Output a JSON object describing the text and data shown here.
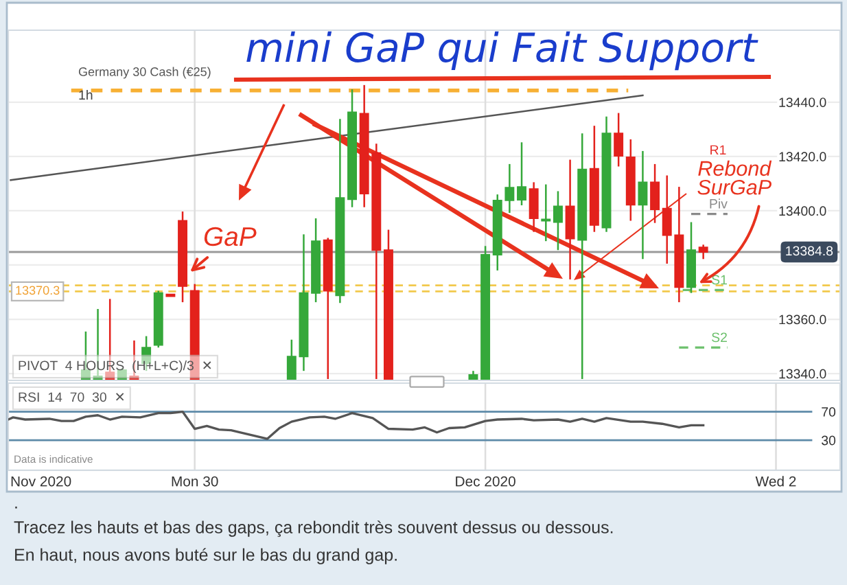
{
  "chart_data": [
    {
      "type": "candlestick",
      "title": "Germany 30 Cash (€25)",
      "subtitle": "1h",
      "x": [
        "2020-11-29T15:00",
        "2020-11-29T16:00",
        "2020-11-29T17:00",
        "2020-11-29T18:00",
        "2020-11-29T19:00",
        "2020-11-29T20:00",
        "2020-11-29T21:00",
        "2020-11-29T22:00",
        "2020-11-29T23:00",
        "2020-11-30T00:00",
        "2020-11-30T08:00",
        "2020-11-30T09:00",
        "2020-11-30T10:00",
        "2020-11-30T11:00",
        "2020-11-30T12:00",
        "2020-11-30T13:00",
        "2020-11-30T14:00",
        "2020-11-30T15:00",
        "2020-11-30T16:00",
        "2020-11-30T23:00",
        "2020-12-01T00:00",
        "2020-12-01T01:00",
        "2020-12-01T02:00",
        "2020-12-01T03:00",
        "2020-12-01T04:00",
        "2020-12-01T05:00",
        "2020-12-01T06:00",
        "2020-12-01T07:00",
        "2020-12-01T08:00",
        "2020-12-01T09:00",
        "2020-12-01T10:00",
        "2020-12-01T11:00",
        "2020-12-01T12:00",
        "2020-12-01T13:00",
        "2020-12-01T14:00",
        "2020-12-01T15:00",
        "2020-12-01T16:00",
        "2020-12-01T17:00",
        "2020-12-01T18:00"
      ],
      "ohlc": [
        [
          13338,
          13355.5,
          13338,
          13341.3
        ],
        [
          13338,
          13363.8,
          13338,
          13339
        ],
        [
          13340.5,
          13367.5,
          13338,
          13338
        ],
        [
          13338,
          13342,
          13338,
          13341.3
        ],
        [
          13339,
          13352.2,
          13338,
          13338
        ],
        [
          13343.8,
          13353.8,
          13341,
          13349.6
        ],
        [
          13350.5,
          13370.5,
          13349.6,
          13369.7
        ],
        [
          13369.2,
          13369.2,
          13368.5,
          13368.5
        ],
        [
          13396.3,
          13399.7,
          13366.3,
          13372.2
        ],
        [
          13370.5,
          13373,
          13338,
          13338
        ],
        [
          13338,
          13352.5,
          13338,
          13346.3
        ],
        [
          13346.3,
          13391.3,
          13341,
          13369.7
        ],
        [
          13369.7,
          13397.2,
          13366.3,
          13388.8
        ],
        [
          13389.2,
          13390,
          13338,
          13370.5
        ],
        [
          13368.8,
          13433.8,
          13366,
          13404.7
        ],
        [
          13404.2,
          13444.7,
          13401.3,
          13436.3
        ],
        [
          13435.8,
          13446.3,
          13401.3,
          13406.3
        ],
        [
          13421.3,
          13424.7,
          13338,
          13385.5
        ],
        [
          13385.5,
          13393,
          13338,
          13338
        ],
        [
          13338,
          13341,
          13338,
          13339.5
        ],
        [
          13338,
          13387,
          13338,
          13383.8
        ],
        [
          13383.8,
          13406,
          13378,
          13403.8
        ],
        [
          13403.8,
          13417.2,
          13399.2,
          13408.5
        ],
        [
          13404,
          13425.2,
          13402,
          13408.8
        ],
        [
          13408,
          13410.5,
          13392.2,
          13397.2
        ],
        [
          13396.3,
          13409.7,
          13388.8,
          13396.8
        ],
        [
          13395.8,
          13407.2,
          13385.5,
          13401.6
        ],
        [
          13401.6,
          13418.8,
          13374.7,
          13389.7
        ],
        [
          13389.2,
          13428.5,
          13338,
          13415.2
        ],
        [
          13415.5,
          13431.3,
          13392.2,
          13394.7
        ],
        [
          13393.8,
          13434.7,
          13392.2,
          13428.5
        ],
        [
          13428.5,
          13436,
          13416.3,
          13420.2
        ],
        [
          13419.7,
          13426.3,
          13396.3,
          13402.2
        ],
        [
          13402.2,
          13422,
          13382.2,
          13410.5
        ],
        [
          13410.5,
          13417.2,
          13395.5,
          13400.5
        ],
        [
          13400.8,
          13413,
          13380.5,
          13391
        ],
        [
          13391,
          13408.8,
          13366.3,
          13371.8
        ],
        [
          13371.8,
          13395.8,
          13369.7,
          13385.5
        ],
        [
          13386.5,
          13387.5,
          13382.2,
          13384.8
        ]
      ],
      "colors": [
        "#35a83a",
        "#35a83a",
        "#e3211c",
        "#35a83a",
        "#e3211c",
        "#35a83a",
        "#35a83a",
        "#e3211c",
        "#e3211c",
        "#e3211c",
        "#35a83a",
        "#35a83a",
        "#35a83a",
        "#e3211c",
        "#35a83a",
        "#35a83a",
        "#e3211c",
        "#e3211c",
        "#e3211c",
        "#35a83a",
        "#35a83a",
        "#35a83a",
        "#35a83a",
        "#35a83a",
        "#e3211c",
        "#35a83a",
        "#35a83a",
        "#e3211c",
        "#35a83a",
        "#e3211c",
        "#35a83a",
        "#e3211c",
        "#e3211c",
        "#35a83a",
        "#e3211c",
        "#e3211c",
        "#e3211c",
        "#35a83a",
        "#e3211c"
      ],
      "series": [
        {
          "type": "line",
          "x": [
            "2020-11-29T08:48",
            "2020-12-01T13:00"
          ],
          "values": [
            13411.3,
            13442.5
          ],
          "color": "#555555",
          "line_style": "solid"
        },
        {
          "type": "line",
          "x": [
            "2020-11-29T13:48",
            "2020-12-01T11:48"
          ],
          "values": [
            13444.3,
            13444.3
          ],
          "color": "#f7b034",
          "line_style": "dashed"
        },
        {
          "type": "line",
          "name": "Piv",
          "x": [
            "2020-12-01T17:00",
            "2020-12-01T20:00"
          ],
          "values": [
            13398.8,
            13398.8
          ],
          "color": "#8a8a8a",
          "line_style": "dashed"
        },
        {
          "type": "line",
          "name": "S1",
          "x": [
            "2020-12-01T16:18",
            "2020-12-01T20:00"
          ],
          "values": [
            13370.8,
            13370.8
          ],
          "color": "#6cc06c",
          "line_style": "dashed"
        },
        {
          "type": "line",
          "name": "S2",
          "x": [
            "2020-12-01T16:00",
            "2020-12-01T20:00"
          ],
          "values": [
            13349.6,
            13349.6
          ],
          "color": "#6cc06c",
          "line_style": "dashed"
        }
      ],
      "xlim": [
        "2020-11-29T08:36",
        "2020-12-02T05:18"
      ],
      "ylim": [
        13337.5,
        13466.5
      ],
      "yticks": [
        {
          "value": 13340,
          "label": "13340.0"
        },
        {
          "value": 13360,
          "label": "13360.0"
        },
        {
          "value": 13380,
          "label": null
        },
        {
          "value": 13400,
          "label": "13400.0"
        },
        {
          "value": 13420,
          "label": "13420.0"
        },
        {
          "value": 13440,
          "label": "13440.0"
        }
      ],
      "tick_labels": "y",
      "grid": "y",
      "ref_lines": [
        {
          "axis": "x",
          "value": "2020-11-30",
          "color": "#dddddd"
        },
        {
          "axis": "x",
          "value": "2020-12-01",
          "color": "#dddddd"
        },
        {
          "axis": "y",
          "value": 13384.8,
          "label": "13384.8",
          "color": "#9a9a9a",
          "line_style": "solid"
        },
        {
          "axis": "y",
          "value": 13370.3,
          "label": "13370.3",
          "color": "#f2c94c",
          "line_style": "dashed"
        },
        {
          "axis": "y",
          "value": 13372.5,
          "color": "#f2c94c",
          "line_style": "dashed"
        }
      ],
      "annotations": [
        "mini GaP qui Fait Support",
        "PIVOT  4 HOURS  (H+L+C)/3  ✕",
        {
          "text": "GaP",
          "x": "2020-11-29T23:30",
          "y": 13377
        },
        {
          "text": "Rebond\nSurGaP",
          "x": "2020-12-01T17:30",
          "y": 13373
        },
        "R1"
      ]
    },
    {
      "type": "line",
      "x": [
        "2020-11-29T08:36",
        "2020-11-29T09:00",
        "2020-11-29T10:00",
        "2020-11-29T12:00",
        "2020-11-29T13:00",
        "2020-11-29T14:00",
        "2020-11-29T15:00",
        "2020-11-29T16:00",
        "2020-11-29T17:00",
        "2020-11-29T18:00",
        "2020-11-29T19:30",
        "2020-11-29T21:00",
        "2020-11-29T22:00",
        "2020-11-29T23:00",
        "2020-11-30T00:00",
        "2020-11-30T01:00",
        "2020-11-30T02:00",
        "2020-11-30T03:00",
        "2020-11-30T04:30",
        "2020-11-30T06:00",
        "2020-11-30T07:00",
        "2020-11-30T08:00",
        "2020-11-30T09:30",
        "2020-11-30T10:42",
        "2020-11-30T11:36",
        "2020-11-30T13:00",
        "2020-11-30T14:42",
        "2020-11-30T16:00",
        "2020-11-30T18:00",
        "2020-11-30T19:00",
        "2020-11-30T20:00",
        "2020-11-30T21:00",
        "2020-11-30T22:18",
        "2020-12-01T00:00",
        "2020-12-01T01:00",
        "2020-12-01T03:00",
        "2020-12-01T04:00",
        "2020-12-01T06:00",
        "2020-12-01T07:00",
        "2020-12-01T08:00",
        "2020-12-01T09:00",
        "2020-12-01T10:00",
        "2020-12-01T12:00",
        "2020-12-01T13:00",
        "2020-12-01T14:36",
        "2020-12-01T16:00",
        "2020-12-01T17:00",
        "2020-12-01T18:00"
      ],
      "series": [
        {
          "color": "#555555",
          "values": [
            59,
            62,
            59,
            60,
            57,
            57,
            63,
            65,
            59,
            63,
            62,
            68,
            68,
            70,
            46,
            50,
            45,
            44,
            38,
            32,
            47,
            56,
            62,
            63,
            60,
            68,
            61,
            46,
            45,
            48,
            41,
            47,
            48,
            57,
            59,
            60,
            58,
            59,
            56,
            60,
            56,
            61,
            56,
            56,
            53,
            48,
            51,
            51
          ]
        }
      ],
      "xlim": [
        "2020-11-29T08:36",
        "2020-12-02T05:18"
      ],
      "ylim": [
        -12,
        110
      ],
      "yticks": [
        30,
        70
      ],
      "xticks": [
        {
          "value": "2020-11-29T11:18",
          "label": "Nov 2020"
        },
        {
          "value": "2020-11-30",
          "label": "Mon 30"
        },
        {
          "value": "2020-12-01",
          "label": "Dec 2020"
        },
        {
          "value": "2020-12-02",
          "label": "Wed 2"
        }
      ],
      "ref_lines": [
        {
          "axis": "x",
          "value": "2020-11-30",
          "color": "#dddddd"
        },
        {
          "axis": "x",
          "value": "2020-12-01",
          "color": "#dddddd"
        },
        {
          "axis": "x",
          "value": "2020-12-02",
          "color": "#dddddd"
        },
        {
          "axis": "y",
          "value": 70,
          "color": "#5d8aa8"
        },
        {
          "axis": "y",
          "value": 30,
          "color": "#5d8aa8"
        }
      ],
      "annotations": [
        "RSI  14  70  30  ✕",
        "Data is indicative",
        ".",
        "Tracez les hauts et bas des gaps, ça rebondit très souvent dessus ou dessous.",
        "En haut, nous avons buté sur le bas du grand gap."
      ]
    }
  ]
}
